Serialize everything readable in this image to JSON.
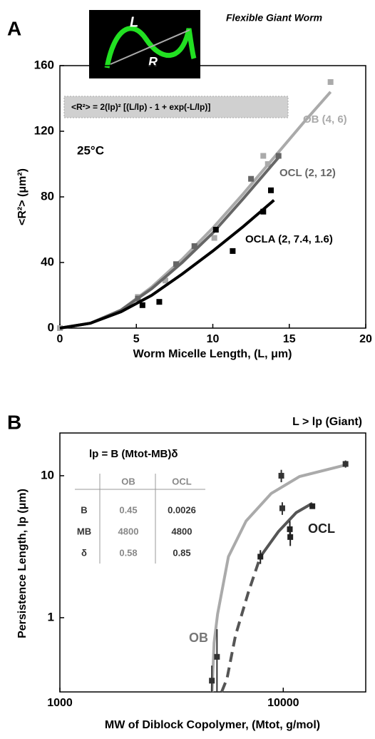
{
  "chart_data": [
    {
      "type": "scatter",
      "panel_label": "A",
      "title": "Flexible Giant Worm",
      "inset_labels": [
        "L",
        "R"
      ],
      "formula": "<R²>  = 2(lp)² [(L/lp) - 1 + exp(-L/lp)]",
      "annotation": "25°C",
      "x_label": "Worm Micelle Length, (L, μm)",
      "y_label": "<R²> (μm²)",
      "xlim": [
        0,
        20
      ],
      "ylim": [
        0,
        160
      ],
      "xticks": [
        0,
        5,
        10,
        15,
        20
      ],
      "yticks": [
        0,
        40,
        80,
        120,
        160
      ],
      "series": [
        {
          "name": "OB (4, 6)",
          "color": "#aaaaaa",
          "x": [
            0,
            5.1,
            6.9,
            8.8,
            10.1,
            13.3,
            13.6,
            17.7
          ],
          "y": [
            0,
            19,
            29,
            50,
            55,
            105,
            100,
            150
          ],
          "fits": [
            {
              "color": "#aaaaaa",
              "dashed": false,
              "x": [
                0,
                2,
                4,
                6,
                8,
                10,
                12,
                14,
                16,
                17.7
              ],
              "y": [
                0,
                3,
                11,
                25,
                42,
                61,
                82,
                104,
                126,
                144
              ]
            }
          ]
        },
        {
          "name": "OCL (2, 12)",
          "color": "#666666",
          "x": [
            5.1,
            7.6,
            8.8,
            12.5,
            14.3
          ],
          "y": [
            18,
            39,
            50,
            91,
            105
          ],
          "fits": [
            {
              "color": "#666666",
              "dashed": false,
              "x": [
                0,
                2,
                4,
                6,
                8,
                10,
                12,
                14.3
              ],
              "y": [
                0,
                3,
                11,
                24,
                40,
                58,
                79,
                104
              ]
            }
          ]
        },
        {
          "name": "OCLA (2, 7.4, 1.6)",
          "color": "#000000",
          "x": [
            5.4,
            6.5,
            10.2,
            11.3,
            13.3,
            13.8
          ],
          "y": [
            14,
            16,
            60,
            47,
            71,
            84
          ],
          "fits": [
            {
              "color": "#000000",
              "dashed": false,
              "x": [
                0,
                2,
                4,
                6,
                8,
                10,
                12,
                14
              ],
              "y": [
                0,
                3,
                10,
                20,
                33,
                47,
                62,
                78
              ]
            }
          ]
        }
      ]
    },
    {
      "type": "scatter",
      "panel_label": "B",
      "title": "L > lp (Giant)",
      "x_log": true,
      "y_log": true,
      "formula": "lp = B (Mtot-MB)δ",
      "table": {
        "header": [
          "OB",
          "OCL"
        ],
        "rows": [
          [
            "B",
            0.45,
            0.0026
          ],
          [
            "MB",
            4800,
            4800
          ],
          [
            "δ",
            0.58,
            0.85
          ]
        ]
      },
      "x_label": "MW of Diblock Copolymer, (Mtot, g/mol)",
      "y_label": "Persistence Length, lp (μm)",
      "xlim": [
        1000,
        23400
      ],
      "ylim": [
        0.3,
        20
      ],
      "xticks": [
        1000,
        10000
      ],
      "yticks": [
        1,
        10
      ],
      "series": [
        {
          "name": "OB",
          "color": "#333333",
          "x": [
            4790,
            5050,
            9800,
            9900,
            19000
          ],
          "y": [
            0.36,
            0.53,
            10,
            5.9,
            12.1
          ],
          "errors": [
            0.1,
            0.3,
            1,
            0.6,
            0.7
          ],
          "fits": [
            {
              "color": "#aaaaaa",
              "dashed": false,
              "x": [
                4797,
                4900,
                5080,
                5680,
                6820,
                8830,
                11830,
                18970
              ],
              "y": [
                0.3,
                0.666,
                1.06,
                2.69,
                4.8,
                7.5,
                9.87,
                11.9
              ]
            }
          ]
        },
        {
          "name": "OCL",
          "color": "#222222",
          "x": [
            7900,
            10700,
            10750,
            13500
          ],
          "y": [
            2.69,
            4.2,
            3.7,
            6.1
          ],
          "errors": [
            0.3,
            0.6,
            0.5,
            0.2
          ],
          "fits": [
            {
              "color": "#555555",
              "dashed": true,
              "x": [
                5300,
                5600,
                6110,
                6970,
                7900
              ],
              "y": [
                0.3,
                0.372,
                0.748,
                1.5,
                2.69
              ]
            },
            {
              "color": "#555555",
              "dashed": false,
              "x": [
                7900,
                9510,
                11430,
                13500
              ],
              "y": [
                2.69,
                4.04,
                5.5,
                6.4
              ]
            }
          ]
        }
      ]
    }
  ]
}
